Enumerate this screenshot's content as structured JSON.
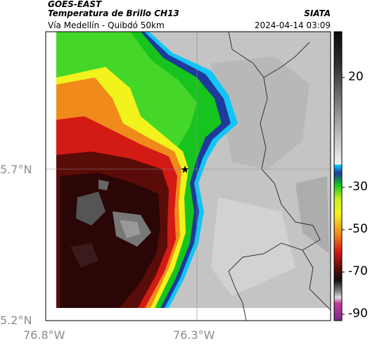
{
  "header": {
    "satellite": "GOES-EAST",
    "product": "Temperatura de Brillo CH13",
    "route": "Vía Medellín - Quibdó 50km",
    "organization": "SIATA",
    "datetime": "2024-04-14 03:09"
  },
  "map": {
    "lat_ticks": [
      "5.7°N",
      "5.2°N"
    ],
    "lon_ticks": [
      "76.8°W",
      "76.3°W"
    ],
    "marker": "star-marker"
  },
  "colorbar": {
    "labels": [
      "20",
      "-30",
      "-50",
      "-70",
      "-90"
    ],
    "colors": {
      "warm_dark": "#1a1a1a",
      "warm_light": "#e8e8e8",
      "cyan": "#00c8ff",
      "blue": "#1d3a9c",
      "green": "#17c41d",
      "yellow": "#f2f21d",
      "orange": "#f08a1a",
      "red": "#d41a14",
      "dark_red": "#3a0a08",
      "magenta": "#c23a9a"
    }
  }
}
